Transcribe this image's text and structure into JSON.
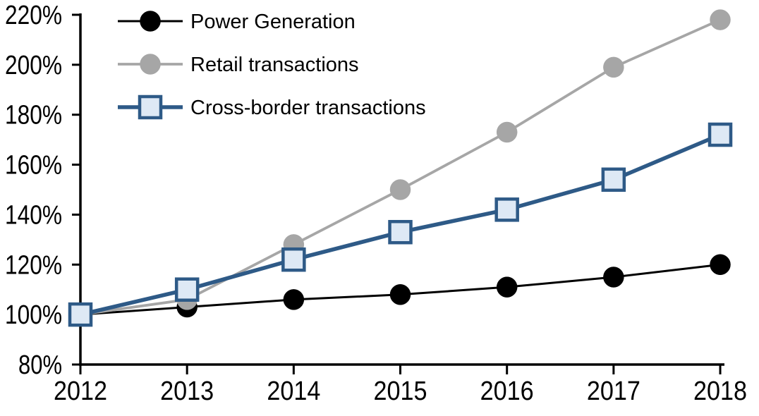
{
  "figure": {
    "background": "#ffffff",
    "title": ""
  },
  "chart_data": {
    "type": "line",
    "title": "",
    "x_categories": [
      "2012",
      "2013",
      "2014",
      "2015",
      "2016",
      "2017",
      "2018"
    ],
    "series": [
      {
        "name": "Power Generation",
        "color": "#000000",
        "marker": "circle",
        "marker_fill": "#000000",
        "marker_stroke": "#000000",
        "line_width": 3,
        "marker_size": 29,
        "values": [
          100,
          103,
          106,
          108,
          111,
          115,
          120
        ]
      },
      {
        "name": "Retail transactions",
        "color": "#A6A6A6",
        "marker": "circle",
        "marker_fill": "#A6A6A6",
        "marker_stroke": "#A6A6A6",
        "line_width": 3.8,
        "marker_size": 29,
        "values": [
          100,
          106,
          128,
          150,
          173,
          199,
          218
        ]
      },
      {
        "name": "Cross-border transactions",
        "color": "#2E5A87",
        "marker": "square",
        "marker_fill": "#DEE9F5",
        "marker_stroke": "#2E5A87",
        "line_width": 5.6,
        "marker_size": 30,
        "values": [
          100,
          110,
          122,
          133,
          142,
          154,
          172
        ]
      }
    ],
    "ylim": [
      80,
      220
    ],
    "ytick_step": 20,
    "ytick_labels": [
      "80%",
      "100%",
      "120%",
      "140%",
      "160%",
      "180%",
      "200%",
      "220%"
    ],
    "xlabel": "",
    "ylabel": "",
    "legend_position": "top-left",
    "grid": false,
    "axis_color": "#000000"
  }
}
